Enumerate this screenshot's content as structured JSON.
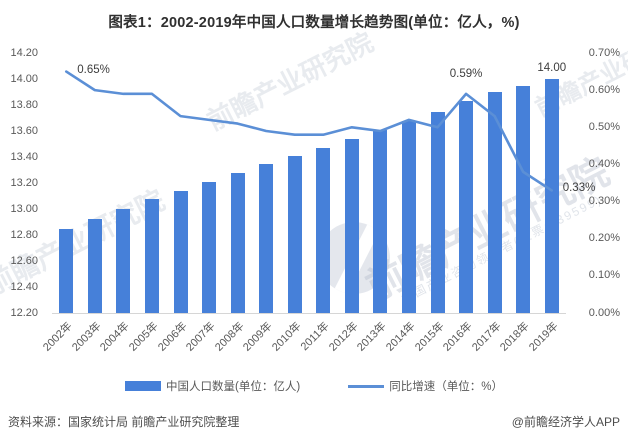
{
  "chart_data": {
    "type": "combo-bar-line",
    "title": "图表1：2002-2019年中国人口数量增长趋势图(单位：亿人，%)",
    "categories": [
      "2002年",
      "2003年",
      "2004年",
      "2005年",
      "2006年",
      "2007年",
      "2008年",
      "2009年",
      "2010年",
      "2011年",
      "2012年",
      "2013年",
      "2014年",
      "2015年",
      "2016年",
      "2017年",
      "2018年",
      "2019年"
    ],
    "series": [
      {
        "name": "中国人口数量(单位：亿人)",
        "type": "bar",
        "axis": "left",
        "color": "#4680d9",
        "values": [
          12.85,
          12.92,
          13.0,
          13.08,
          13.14,
          13.21,
          13.28,
          13.35,
          13.41,
          13.47,
          13.54,
          13.61,
          13.68,
          13.75,
          13.83,
          13.9,
          13.95,
          14.0
        ]
      },
      {
        "name": "同比增速（单位：%）",
        "type": "line",
        "axis": "right",
        "color": "#5b8fd6",
        "values": [
          0.65,
          0.6,
          0.59,
          0.59,
          0.53,
          0.52,
          0.51,
          0.49,
          0.48,
          0.48,
          0.5,
          0.49,
          0.52,
          0.5,
          0.59,
          0.53,
          0.38,
          0.33
        ]
      }
    ],
    "left_axis": {
      "min": 12.2,
      "max": 14.2,
      "step": 0.2,
      "tick_labels": [
        "14.20",
        "14.00",
        "13.80",
        "13.60",
        "13.40",
        "13.20",
        "13.00",
        "12.80",
        "12.60",
        "12.40",
        "12.20"
      ]
    },
    "right_axis": {
      "min": 0.0,
      "max": 0.7,
      "step": 0.1,
      "tick_labels": [
        "0.70%",
        "0.60%",
        "0.50%",
        "0.40%",
        "0.30%",
        "0.20%",
        "0.10%",
        "0.00%"
      ]
    },
    "grid": false,
    "legend_position": "bottom",
    "annotations": [
      {
        "series": "line",
        "index": 0,
        "text": "0.65%",
        "placement": "right"
      },
      {
        "series": "line",
        "index": 14,
        "text": "0.59%",
        "placement": "above"
      },
      {
        "series": "line",
        "index": 17,
        "text": "0.33%",
        "placement": "right"
      },
      {
        "series": "bar",
        "index": 17,
        "text": "14.00",
        "placement": "above"
      }
    ]
  },
  "footer": {
    "source": "资料来源：国家统计局 前瞻产业研究院整理",
    "credit": "@前瞻经济学人APP"
  },
  "watermark": {
    "text": "前瞻产业研究院",
    "subtext": "中国产业咨询领导者(股票:839599)"
  }
}
